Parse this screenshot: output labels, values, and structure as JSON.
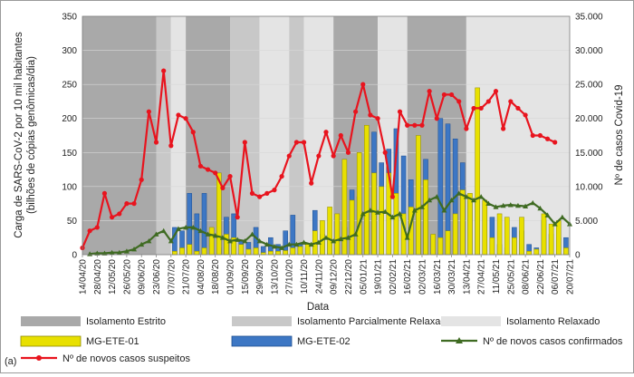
{
  "panel_label": "(a)",
  "colors": {
    "estrito": "#a9a9a9",
    "parcial": "#c8c8c8",
    "relaxado": "#e4e4e4",
    "ete01": "#e8e000",
    "ete01_edge": "#8f8a00",
    "ete02": "#3d77c4",
    "ete02_edge": "#1f4f91",
    "confirmados": "#3f6b22",
    "suspeitos": "#e8141e"
  },
  "chart_data": {
    "type": "bar",
    "xlabel": "Data",
    "ylabel_left_line1": "Carga de SARS-CoV-2 por 10 mil habitantes",
    "ylabel_left_line2": "(bilhões de cópias genômicas/dia)",
    "ylabel_right": "Nº de casos Covid-19",
    "ylim_left": [
      0,
      350
    ],
    "ylim_right": [
      0,
      35000
    ],
    "yticks_left": [
      "0",
      "50",
      "100",
      "150",
      "200",
      "250",
      "300",
      "350"
    ],
    "yticks_right": [
      "0",
      "5.000",
      "10.000",
      "15.000",
      "20.000",
      "25.000",
      "30.000",
      "35.000"
    ],
    "xtick_labels": [
      "14/04/20",
      "28/04/20",
      "12/05/20",
      "26/05/20",
      "09/06/20",
      "23/06/20",
      "07/07/20",
      "21/07/20",
      "04/08/20",
      "18/08/20",
      "01/09/20",
      "15/09/20",
      "29/09/20",
      "13/10/20",
      "27/10/20",
      "10/11/20",
      "24/11/20",
      "09/12/20",
      "22/12/20",
      "05/01/21",
      "19/01/21",
      "02/02/21",
      "16/02/21",
      "02/03/21",
      "16/03/21",
      "30/03/21",
      "13/04/21",
      "27/04/21",
      "11/05/21",
      "25/05/21",
      "08/06/21",
      "22/06/21",
      "06/07/21",
      "20/07/21"
    ],
    "x_range_weeks": [
      0,
      66
    ],
    "phases": [
      {
        "type": "estrito",
        "start": 0,
        "end": 10
      },
      {
        "type": "parcial",
        "start": 10,
        "end": 12
      },
      {
        "type": "relaxado",
        "start": 12,
        "end": 14
      },
      {
        "type": "estrito",
        "start": 14,
        "end": 20
      },
      {
        "type": "parcial",
        "start": 20,
        "end": 24
      },
      {
        "type": "relaxado",
        "start": 24,
        "end": 28
      },
      {
        "type": "parcial",
        "start": 28,
        "end": 30
      },
      {
        "type": "relaxado",
        "start": 30,
        "end": 34
      },
      {
        "type": "estrito",
        "start": 34,
        "end": 40
      },
      {
        "type": "relaxado",
        "start": 40,
        "end": 44
      },
      {
        "type": "estrito",
        "start": 44,
        "end": 52
      },
      {
        "type": "relaxado",
        "start": 52,
        "end": 66
      }
    ],
    "series": [
      {
        "name": "MG-ETE-01",
        "kind": "bar",
        "points": [
          [
            12.5,
            5
          ],
          [
            13.5,
            10
          ],
          [
            14.5,
            15
          ],
          [
            15.5,
            5
          ],
          [
            16.5,
            10
          ],
          [
            17.5,
            40
          ],
          [
            18.5,
            120
          ],
          [
            19.5,
            30
          ],
          [
            20.5,
            25
          ],
          [
            21.5,
            15
          ],
          [
            22.5,
            8
          ],
          [
            23.5,
            10
          ],
          [
            24.5,
            3
          ],
          [
            25.5,
            5
          ],
          [
            26.5,
            5
          ],
          [
            27.5,
            6
          ],
          [
            28.5,
            10
          ],
          [
            29.5,
            12
          ],
          [
            30.5,
            15
          ],
          [
            31.5,
            35
          ],
          [
            32.5,
            50
          ],
          [
            33.5,
            70
          ],
          [
            34.5,
            60
          ],
          [
            35.5,
            140
          ],
          [
            36.5,
            80
          ],
          [
            37.5,
            150
          ],
          [
            38.5,
            190
          ],
          [
            39.5,
            120
          ],
          [
            40.5,
            100
          ],
          [
            41.5,
            120
          ],
          [
            42.5,
            90
          ],
          [
            43.5,
            60
          ],
          [
            44.5,
            70
          ],
          [
            45.5,
            175
          ],
          [
            46.5,
            110
          ],
          [
            47.5,
            30
          ],
          [
            48.5,
            25
          ],
          [
            49.5,
            35
          ],
          [
            50.5,
            60
          ],
          [
            51.5,
            95
          ],
          [
            52.5,
            90
          ],
          [
            53.5,
            245
          ],
          [
            54.5,
            80
          ],
          [
            55.5,
            25
          ],
          [
            56.5,
            60
          ],
          [
            57.5,
            55
          ],
          [
            58.5,
            25
          ],
          [
            59.5,
            55
          ],
          [
            60.5,
            5
          ],
          [
            61.5,
            8
          ],
          [
            62.5,
            60
          ],
          [
            63.5,
            45
          ],
          [
            64.5,
            50
          ],
          [
            65.5,
            10
          ]
        ]
      },
      {
        "name": "MG-ETE-02",
        "kind": "bar",
        "points": [
          [
            12.5,
            40
          ],
          [
            13.5,
            35
          ],
          [
            14.5,
            90
          ],
          [
            15.5,
            60
          ],
          [
            16.5,
            90
          ],
          [
            17.5,
            30
          ],
          [
            18.5,
            10
          ],
          [
            19.5,
            55
          ],
          [
            20.5,
            60
          ],
          [
            21.5,
            20
          ],
          [
            22.5,
            18
          ],
          [
            23.5,
            40
          ],
          [
            24.5,
            12
          ],
          [
            25.5,
            25
          ],
          [
            26.5,
            15
          ],
          [
            27.5,
            35
          ],
          [
            28.5,
            58
          ],
          [
            29.5,
            15
          ],
          [
            30.5,
            10
          ],
          [
            31.5,
            65
          ],
          [
            32.5,
            30
          ],
          [
            33.5,
            20
          ],
          [
            34.5,
            10
          ],
          [
            35.5,
            40
          ],
          [
            36.5,
            95
          ],
          [
            37.5,
            85
          ],
          [
            38.5,
            60
          ],
          [
            39.5,
            180
          ],
          [
            40.5,
            135
          ],
          [
            41.5,
            155
          ],
          [
            42.5,
            185
          ],
          [
            43.5,
            145
          ],
          [
            44.5,
            110
          ],
          [
            45.5,
            70
          ],
          [
            46.5,
            140
          ],
          [
            47.5,
            28
          ],
          [
            48.5,
            200
          ],
          [
            49.5,
            192
          ],
          [
            50.5,
            170
          ],
          [
            51.5,
            135
          ],
          [
            52.5,
            80
          ],
          [
            53.5,
            80
          ],
          [
            54.5,
            75
          ],
          [
            55.5,
            55
          ],
          [
            56.5,
            15
          ],
          [
            57.5,
            10
          ],
          [
            58.5,
            40
          ],
          [
            59.5,
            35
          ],
          [
            60.5,
            15
          ],
          [
            61.5,
            10
          ],
          [
            62.5,
            50
          ],
          [
            63.5,
            30
          ],
          [
            64.5,
            25
          ],
          [
            65.5,
            25
          ]
        ]
      },
      {
        "name": "Nº de novos casos confirmados",
        "kind": "line",
        "axis": "right",
        "points": [
          [
            1,
            100
          ],
          [
            2,
            200
          ],
          [
            3,
            200
          ],
          [
            4,
            300
          ],
          [
            5,
            300
          ],
          [
            6,
            500
          ],
          [
            7,
            800
          ],
          [
            8,
            1500
          ],
          [
            9,
            2000
          ],
          [
            10,
            3000
          ],
          [
            11,
            3500
          ],
          [
            12,
            2000
          ],
          [
            13,
            3800
          ],
          [
            14,
            4000
          ],
          [
            15,
            4000
          ],
          [
            16,
            3500
          ],
          [
            17,
            3000
          ],
          [
            18,
            2800
          ],
          [
            19,
            2500
          ],
          [
            20,
            2000
          ],
          [
            21,
            2200
          ],
          [
            22,
            2000
          ],
          [
            23,
            3000
          ],
          [
            24,
            2000
          ],
          [
            25,
            1500
          ],
          [
            26,
            1200
          ],
          [
            27,
            1000
          ],
          [
            28,
            1500
          ],
          [
            29,
            1500
          ],
          [
            30,
            1800
          ],
          [
            31,
            1500
          ],
          [
            32,
            1800
          ],
          [
            33,
            2500
          ],
          [
            34,
            2000
          ],
          [
            35,
            2300
          ],
          [
            36,
            2500
          ],
          [
            37,
            3000
          ],
          [
            38,
            6000
          ],
          [
            39,
            6500
          ],
          [
            40,
            6200
          ],
          [
            41,
            6300
          ],
          [
            42,
            5500
          ],
          [
            43,
            6000
          ],
          [
            44,
            2500
          ],
          [
            45,
            6500
          ],
          [
            46,
            7000
          ],
          [
            47,
            8000
          ],
          [
            48,
            8500
          ],
          [
            49,
            6500
          ],
          [
            50,
            8000
          ],
          [
            51,
            9000
          ],
          [
            52,
            8500
          ],
          [
            53,
            8000
          ],
          [
            54,
            8500
          ],
          [
            55,
            7500
          ],
          [
            56,
            7000
          ],
          [
            57,
            7200
          ],
          [
            58,
            7300
          ],
          [
            59,
            7200
          ],
          [
            60,
            7100
          ],
          [
            61,
            7600
          ],
          [
            62,
            6800
          ],
          [
            63,
            5800
          ],
          [
            64,
            4500
          ],
          [
            65,
            5500
          ],
          [
            66,
            4500
          ]
        ]
      },
      {
        "name": "Nº de novos casos suspeitos",
        "kind": "line",
        "axis": "right",
        "points": [
          [
            0,
            1000
          ],
          [
            1,
            3500
          ],
          [
            2,
            4000
          ],
          [
            3,
            9000
          ],
          [
            4,
            5500
          ],
          [
            5,
            6000
          ],
          [
            6,
            7500
          ],
          [
            7,
            7500
          ],
          [
            8,
            11000
          ],
          [
            9,
            21000
          ],
          [
            10,
            16500
          ],
          [
            11,
            27000
          ],
          [
            12,
            16000
          ],
          [
            13,
            20500
          ],
          [
            14,
            20000
          ],
          [
            15,
            18000
          ],
          [
            16,
            13000
          ],
          [
            17,
            12500
          ],
          [
            18,
            12000
          ],
          [
            19,
            9800
          ],
          [
            20,
            11500
          ],
          [
            21,
            5500
          ],
          [
            22,
            16500
          ],
          [
            23,
            9000
          ],
          [
            24,
            8500
          ],
          [
            25,
            9000
          ],
          [
            26,
            9500
          ],
          [
            27,
            11500
          ],
          [
            28,
            14500
          ],
          [
            29,
            16500
          ],
          [
            30,
            16500
          ],
          [
            31,
            10500
          ],
          [
            32,
            14500
          ],
          [
            33,
            18000
          ],
          [
            34,
            14500
          ],
          [
            35,
            17500
          ],
          [
            36,
            15000
          ],
          [
            37,
            21000
          ],
          [
            38,
            25000
          ],
          [
            39,
            20500
          ],
          [
            40,
            20000
          ],
          [
            41,
            15000
          ],
          [
            42,
            8500
          ],
          [
            43,
            21000
          ],
          [
            44,
            19000
          ],
          [
            45,
            19000
          ],
          [
            46,
            19000
          ],
          [
            47,
            24000
          ],
          [
            48,
            20000
          ],
          [
            49,
            23500
          ],
          [
            50,
            23500
          ],
          [
            51,
            22500
          ],
          [
            52,
            18500
          ],
          [
            53,
            21500
          ],
          [
            54,
            21500
          ],
          [
            55,
            22500
          ],
          [
            56,
            24000
          ],
          [
            57,
            18500
          ],
          [
            58,
            22500
          ],
          [
            59,
            21500
          ],
          [
            60,
            20500
          ],
          [
            61,
            17500
          ],
          [
            62,
            17500
          ],
          [
            63,
            17000
          ],
          [
            64,
            16500
          ]
        ]
      }
    ],
    "legend": [
      {
        "key": "estrito",
        "label": "Isolamento Estrito"
      },
      {
        "key": "parcial",
        "label": "Isolamento Parcialmente Relaxado"
      },
      {
        "key": "relaxado",
        "label": "Isolamento Relaxado"
      },
      {
        "key": "ete01",
        "label": "MG-ETE-01"
      },
      {
        "key": "ete02",
        "label": "MG-ETE-02"
      },
      {
        "key": "confirmados",
        "label": "Nº de novos casos confirmados"
      },
      {
        "key": "suspeitos",
        "label": "Nº de novos casos suspeitos"
      }
    ]
  }
}
